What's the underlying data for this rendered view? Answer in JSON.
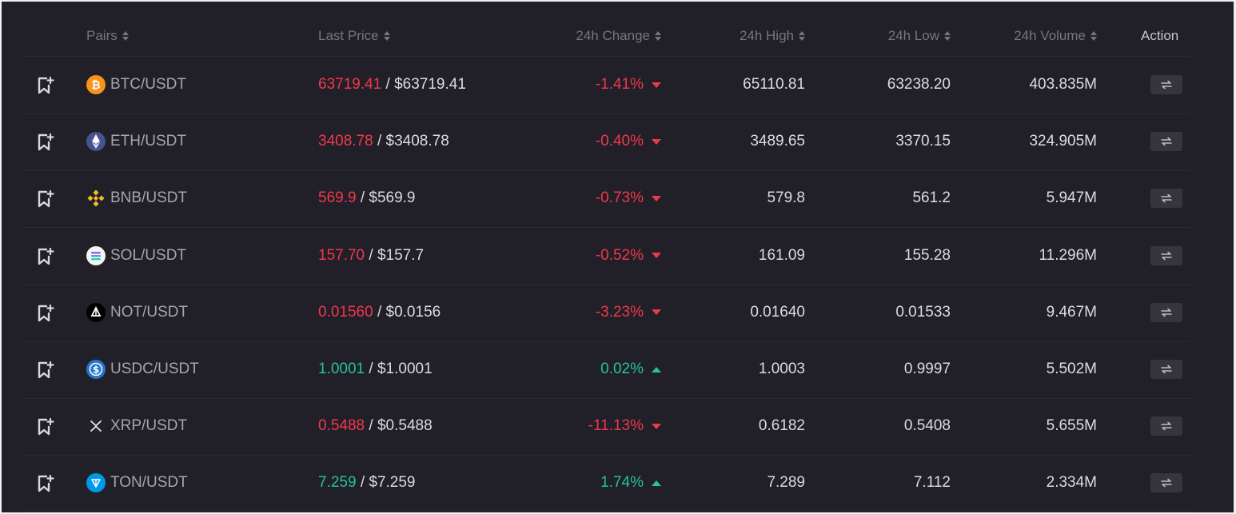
{
  "header": {
    "pairs": "Pairs",
    "last_price": "Last Price",
    "change": "24h Change",
    "high": "24h High",
    "low": "24h Low",
    "volume": "24h Volume",
    "action": "Action"
  },
  "colors": {
    "up": "#25c29e",
    "down": "#f0384d",
    "background": "#211f27"
  },
  "rows": [
    {
      "pair": "BTC/USDT",
      "coin_icon": "bitcoin-icon",
      "price": "63719.41",
      "usd": " / $63719.41",
      "change": "-1.41%",
      "direction": "down",
      "high": "65110.81",
      "low": "63238.20",
      "volume": "403.835M"
    },
    {
      "pair": "ETH/USDT",
      "coin_icon": "ethereum-icon",
      "price": "3408.78",
      "usd": " / $3408.78",
      "change": "-0.40%",
      "direction": "down",
      "high": "3489.65",
      "low": "3370.15",
      "volume": "324.905M"
    },
    {
      "pair": "BNB/USDT",
      "coin_icon": "bnb-icon",
      "price": "569.9",
      "usd": " / $569.9",
      "change": "-0.73%",
      "direction": "down",
      "high": "579.8",
      "low": "561.2",
      "volume": "5.947M"
    },
    {
      "pair": "SOL/USDT",
      "coin_icon": "solana-icon",
      "price": "157.70",
      "usd": " / $157.7",
      "change": "-0.52%",
      "direction": "down",
      "high": "161.09",
      "low": "155.28",
      "volume": "11.296M"
    },
    {
      "pair": "NOT/USDT",
      "coin_icon": "notcoin-icon",
      "price": "0.01560",
      "usd": " / $0.0156",
      "change": "-3.23%",
      "direction": "down",
      "high": "0.01640",
      "low": "0.01533",
      "volume": "9.467M"
    },
    {
      "pair": "USDC/USDT",
      "coin_icon": "usdc-icon",
      "price": "1.0001",
      "usd": " / $1.0001",
      "change": "0.02%",
      "direction": "up",
      "high": "1.0003",
      "low": "0.9997",
      "volume": "5.502M"
    },
    {
      "pair": "XRP/USDT",
      "coin_icon": "xrp-icon",
      "price": "0.5488",
      "usd": " / $0.5488",
      "change": "-11.13%",
      "direction": "down",
      "high": "0.6182",
      "low": "0.5408",
      "volume": "5.655M"
    },
    {
      "pair": "TON/USDT",
      "coin_icon": "toncoin-icon",
      "price": "7.259",
      "usd": " / $7.259",
      "change": "1.74%",
      "direction": "up",
      "high": "7.289",
      "low": "7.112",
      "volume": "2.334M"
    }
  ]
}
